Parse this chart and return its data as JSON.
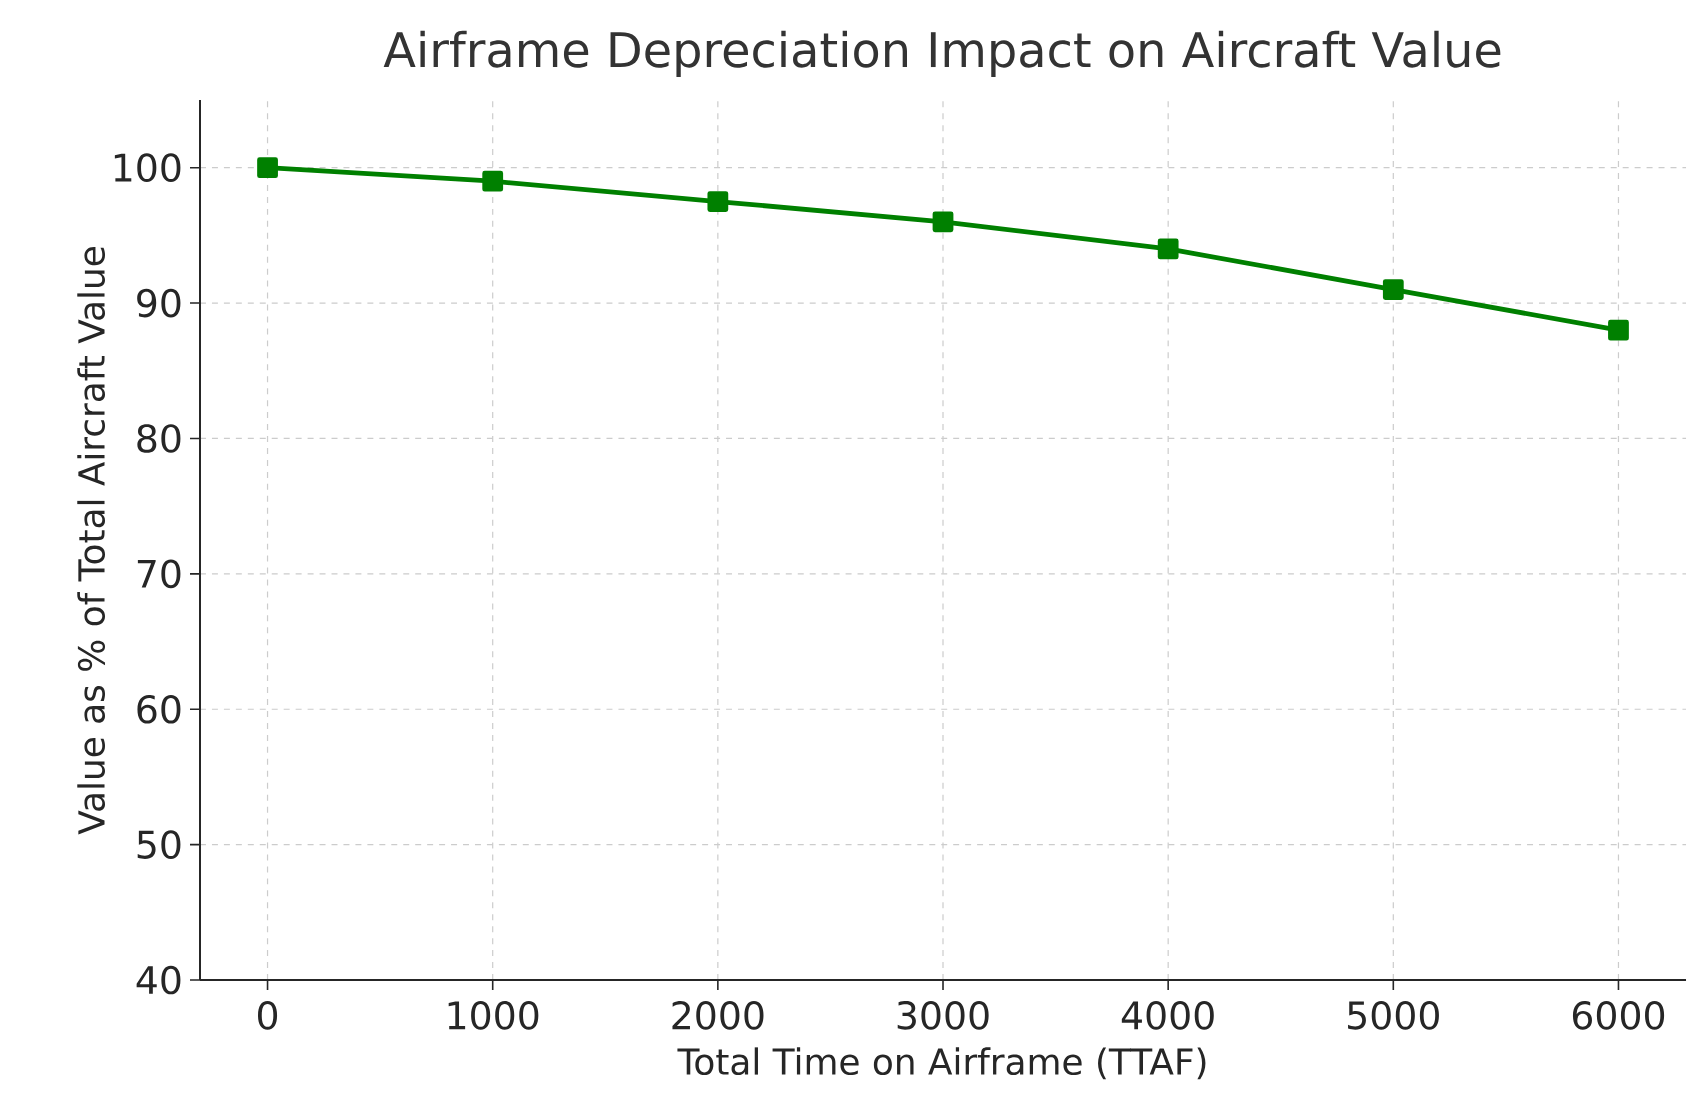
{
  "chart_data": {
    "type": "line",
    "title": "Airframe Depreciation Impact on Aircraft Value",
    "xlabel": "Total Time on Airframe (TTAF)",
    "ylabel": "Value as % of Total Aircraft Value",
    "x": [
      0,
      1000,
      2000,
      3000,
      4000,
      5000,
      6000
    ],
    "series": [
      {
        "color": "#008000",
        "values": [
          100,
          99,
          97.5,
          96,
          94,
          91,
          88
        ]
      }
    ],
    "xlim": [
      -300,
      6300
    ],
    "ylim": [
      40,
      105
    ],
    "xticks": [
      0,
      1000,
      2000,
      3000,
      4000,
      5000,
      6000
    ],
    "yticks": [
      40,
      50,
      60,
      70,
      80,
      90,
      100
    ],
    "grid": true,
    "marker": "square",
    "line_style": "solid"
  }
}
